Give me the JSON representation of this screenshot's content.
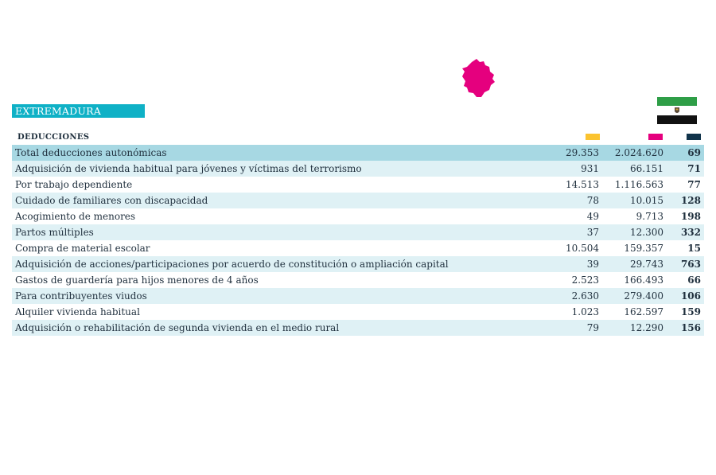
{
  "region": {
    "name": "EXTREMADURA",
    "map_color": "#e5007e"
  },
  "flag": {
    "colors": [
      "#2e9e47",
      "#ffffff",
      "#111111"
    ]
  },
  "table": {
    "header": "DEDUCCIONES",
    "column_swatches": [
      "#fbc32f",
      "#e5007e",
      "#10334a"
    ],
    "rows": [
      {
        "name": "Total deducciones autonómicas",
        "v1": "29.353",
        "v2": "2.024.620",
        "v3": "69"
      },
      {
        "name": "Adquisición de vivienda habitual para jóvenes y víctimas del terrorismo",
        "v1": "931",
        "v2": "66.151",
        "v3": "71"
      },
      {
        "name": "Por trabajo dependiente",
        "v1": "14.513",
        "v2": "1.116.563",
        "v3": "77"
      },
      {
        "name": "Cuidado de familiares con discapacidad",
        "v1": "78",
        "v2": "10.015",
        "v3": "128"
      },
      {
        "name": "Acogimiento de menores",
        "v1": "49",
        "v2": "9.713",
        "v3": "198"
      },
      {
        "name": "Partos múltiples",
        "v1": "37",
        "v2": "12.300",
        "v3": "332"
      },
      {
        "name": "Compra de material escolar",
        "v1": "10.504",
        "v2": "159.357",
        "v3": "15"
      },
      {
        "name": "Adquisición de acciones/participaciones por acuerdo de constitución o ampliación capital",
        "v1": "39",
        "v2": "29.743",
        "v3": "763"
      },
      {
        "name": "Gastos de guardería para hijos menores de 4 años",
        "v1": "2.523",
        "v2": "166.493",
        "v3": "66"
      },
      {
        "name": "Para contribuyentes viudos",
        "v1": "2.630",
        "v2": "279.400",
        "v3": "106"
      },
      {
        "name": "Alquiler vivienda habitual",
        "v1": "1.023",
        "v2": "162.597",
        "v3": "159"
      },
      {
        "name": "Adquisición o rehabilitación de segunda vivienda en el medio rural",
        "v1": "79",
        "v2": "12.290",
        "v3": "156"
      }
    ]
  }
}
